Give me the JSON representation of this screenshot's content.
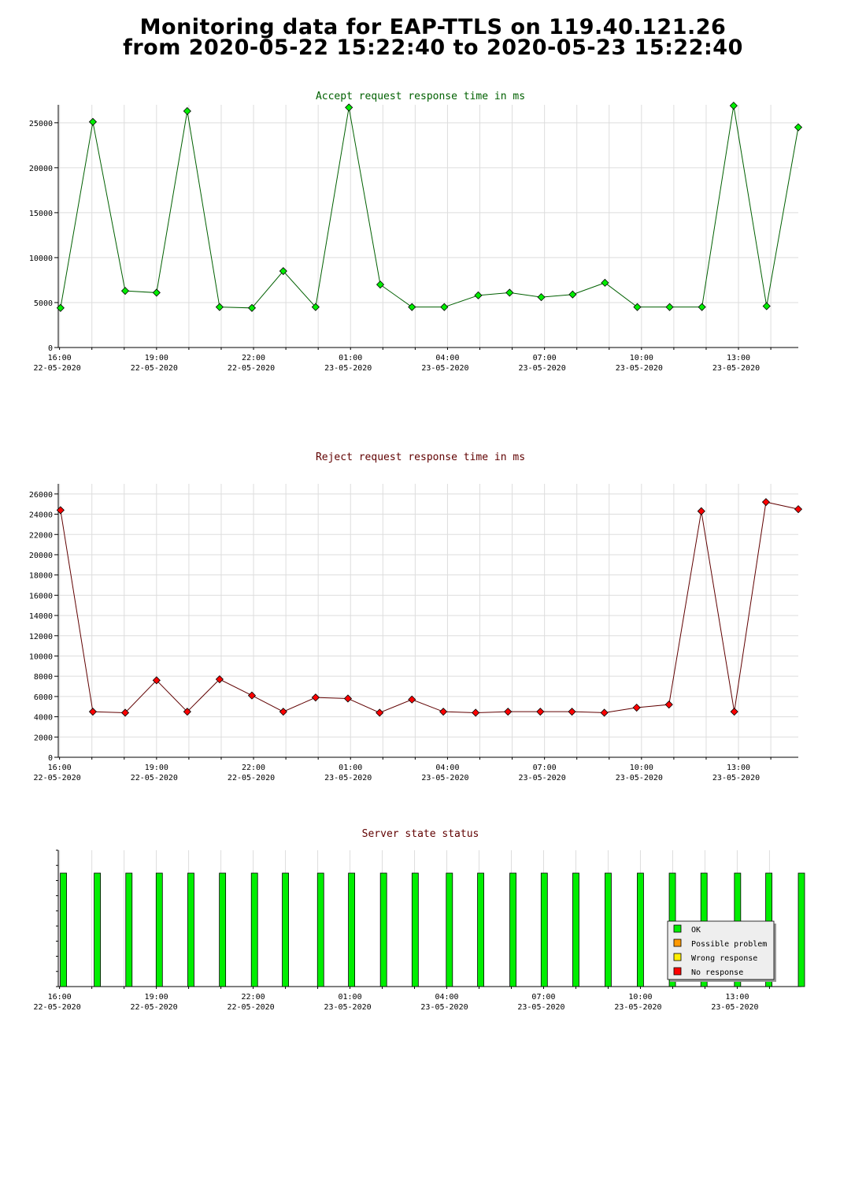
{
  "page": {
    "title_line1": "Monitoring data for EAP-TTLS on 119.40.121.26",
    "title_line2": "from 2020-05-22 15:22:40 to 2020-05-23 15:22:40"
  },
  "colors": {
    "accept_line": "#006000",
    "accept_marker": "#00ee00",
    "accept_title": "#006000",
    "reject_line": "#600000",
    "reject_marker": "#ff0000",
    "reject_title": "#600000",
    "status_title": "#600000",
    "grid": "#dddddd",
    "ok": "#00ee00",
    "possible_problem": "#ff9900",
    "wrong_response": "#ffee00",
    "no_response": "#ff0000"
  },
  "chart_data": [
    {
      "type": "line",
      "title": "Accept request response time in ms",
      "xlabel": "",
      "ylabel": "",
      "xlim_hours": [
        15.96,
        38.85
      ],
      "ylim": [
        0,
        27000
      ],
      "y_ticks": [
        0,
        5000,
        10000,
        15000,
        20000,
        25000
      ],
      "x_tick_labels": [
        {
          "time": "16:00",
          "date": "22-05-2020",
          "h": 16
        },
        {
          "time": "19:00",
          "date": "22-05-2020",
          "h": 19
        },
        {
          "time": "22:00",
          "date": "22-05-2020",
          "h": 22
        },
        {
          "time": "01:00",
          "date": "23-05-2020",
          "h": 25
        },
        {
          "time": "04:00",
          "date": "23-05-2020",
          "h": 28
        },
        {
          "time": "07:00",
          "date": "23-05-2020",
          "h": 31
        },
        {
          "time": "10:00",
          "date": "23-05-2020",
          "h": 34
        },
        {
          "time": "13:00",
          "date": "23-05-2020",
          "h": 37
        }
      ],
      "grid": true,
      "x_hours": [
        16.03,
        17.03,
        18.03,
        19.0,
        19.95,
        20.95,
        21.95,
        22.92,
        23.92,
        24.95,
        25.92,
        26.9,
        27.9,
        28.95,
        29.92,
        30.9,
        31.87,
        32.87,
        33.87,
        34.87,
        35.87,
        36.85,
        37.87,
        38.85
      ],
      "values": [
        4400,
        25100,
        6300,
        6100,
        26300,
        4500,
        4400,
        8500,
        4500,
        26700,
        7000,
        4500,
        4500,
        5800,
        6100,
        5600,
        5900,
        7200,
        4500,
        4500,
        4500,
        26900,
        4600,
        24500
      ]
    },
    {
      "type": "line",
      "title": "Reject request response time in ms",
      "xlabel": "",
      "ylabel": "",
      "xlim_hours": [
        15.96,
        38.85
      ],
      "ylim": [
        0,
        27000
      ],
      "y_ticks": [
        0,
        2000,
        4000,
        6000,
        8000,
        10000,
        12000,
        14000,
        16000,
        18000,
        20000,
        22000,
        24000,
        26000
      ],
      "x_tick_labels": [
        {
          "time": "16:00",
          "date": "22-05-2020",
          "h": 16
        },
        {
          "time": "19:00",
          "date": "22-05-2020",
          "h": 19
        },
        {
          "time": "22:00",
          "date": "22-05-2020",
          "h": 22
        },
        {
          "time": "01:00",
          "date": "23-05-2020",
          "h": 25
        },
        {
          "time": "04:00",
          "date": "23-05-2020",
          "h": 28
        },
        {
          "time": "07:00",
          "date": "23-05-2020",
          "h": 31
        },
        {
          "time": "10:00",
          "date": "23-05-2020",
          "h": 34
        },
        {
          "time": "13:00",
          "date": "23-05-2020",
          "h": 37
        }
      ],
      "grid": true,
      "x_hours": [
        16.03,
        17.03,
        18.03,
        19.0,
        19.95,
        20.95,
        21.95,
        22.92,
        23.92,
        24.92,
        25.9,
        26.9,
        27.87,
        28.87,
        29.87,
        30.87,
        31.85,
        32.85,
        33.85,
        34.85,
        35.85,
        36.87,
        37.85,
        38.85
      ],
      "values": [
        24400,
        4500,
        4400,
        7600,
        4500,
        7700,
        6100,
        4500,
        5900,
        5800,
        4400,
        5700,
        4500,
        4400,
        4500,
        4500,
        4500,
        4400,
        4900,
        5200,
        24300,
        4500,
        25200,
        24500
      ]
    },
    {
      "type": "bar",
      "title": "Server state status",
      "xlabel": "",
      "ylabel": "",
      "xlim_hours": [
        15.96,
        38.99
      ],
      "x_tick_labels": [
        {
          "time": "16:00",
          "date": "22-05-2020",
          "h": 16
        },
        {
          "time": "19:00",
          "date": "22-05-2020",
          "h": 19
        },
        {
          "time": "22:00",
          "date": "22-05-2020",
          "h": 22
        },
        {
          "time": "01:00",
          "date": "23-05-2020",
          "h": 25
        },
        {
          "time": "04:00",
          "date": "23-05-2020",
          "h": 28
        },
        {
          "time": "07:00",
          "date": "23-05-2020",
          "h": 31
        },
        {
          "time": "10:00",
          "date": "23-05-2020",
          "h": 34
        },
        {
          "time": "13:00",
          "date": "23-05-2020",
          "h": 37
        }
      ],
      "grid": true,
      "x_hours": [
        16.12,
        17.17,
        18.15,
        19.09,
        20.07,
        21.05,
        22.04,
        23.0,
        24.09,
        25.05,
        26.04,
        27.02,
        28.08,
        29.05,
        30.05,
        31.02,
        32.0,
        33.0,
        34.0,
        34.99,
        35.97,
        37.01,
        37.98,
        38.99
      ],
      "status": [
        "OK",
        "OK",
        "OK",
        "OK",
        "OK",
        "OK",
        "OK",
        "OK",
        "OK",
        "OK",
        "OK",
        "OK",
        "OK",
        "OK",
        "OK",
        "OK",
        "OK",
        "OK",
        "OK",
        "OK",
        "OK",
        "OK",
        "OK",
        "OK"
      ],
      "legend": [
        {
          "label": "OK",
          "color": "#00ee00"
        },
        {
          "label": "Possible problem",
          "color": "#ff9900"
        },
        {
          "label": "Wrong response",
          "color": "#ffee00"
        },
        {
          "label": "No response",
          "color": "#ff0000"
        }
      ],
      "legend_position": "bottom-right"
    }
  ]
}
